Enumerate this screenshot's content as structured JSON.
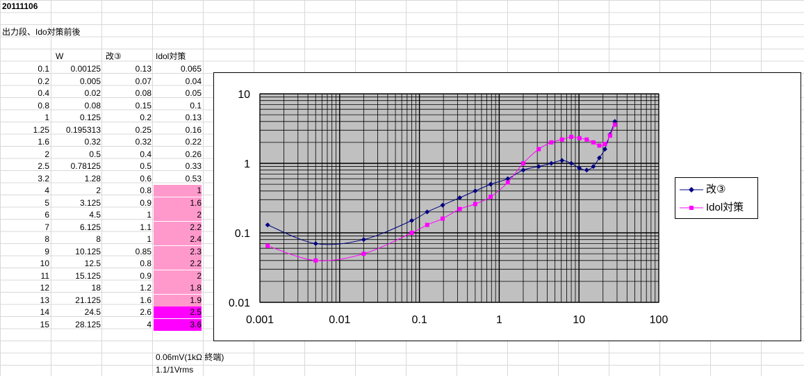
{
  "sheet": {
    "date": "20111106",
    "subtitle": "出力段、Ido対策前後",
    "headers": {
      "w": "W",
      "kai3": "改③",
      "idol": "Idol対策"
    },
    "rows": [
      {
        "v": "0.1",
        "w": "0.00125",
        "kai3": "0.13",
        "idol": "0.065",
        "hl": ""
      },
      {
        "v": "0.2",
        "w": "0.005",
        "kai3": "0.07",
        "idol": "0.04",
        "hl": ""
      },
      {
        "v": "0.4",
        "w": "0.02",
        "kai3": "0.08",
        "idol": "0.05",
        "hl": ""
      },
      {
        "v": "0.8",
        "w": "0.08",
        "kai3": "0.15",
        "idol": "0.1",
        "hl": ""
      },
      {
        "v": "1",
        "w": "0.125",
        "kai3": "0.2",
        "idol": "0.13",
        "hl": ""
      },
      {
        "v": "1.25",
        "w": "0.195313",
        "kai3": "0.25",
        "idol": "0.16",
        "hl": ""
      },
      {
        "v": "1.6",
        "w": "0.32",
        "kai3": "0.32",
        "idol": "0.22",
        "hl": ""
      },
      {
        "v": "2",
        "w": "0.5",
        "kai3": "0.4",
        "idol": "0.26",
        "hl": ""
      },
      {
        "v": "2.5",
        "w": "0.78125",
        "kai3": "0.5",
        "idol": "0.33",
        "hl": ""
      },
      {
        "v": "3.2",
        "w": "1.28",
        "kai3": "0.6",
        "idol": "0.53",
        "hl": ""
      },
      {
        "v": "4",
        "w": "2",
        "kai3": "0.8",
        "idol": "1",
        "hl": "pink"
      },
      {
        "v": "5",
        "w": "3.125",
        "kai3": "0.9",
        "idol": "1.6",
        "hl": "pink"
      },
      {
        "v": "6",
        "w": "4.5",
        "kai3": "1",
        "idol": "2",
        "hl": "pink"
      },
      {
        "v": "7",
        "w": "6.125",
        "kai3": "1.1",
        "idol": "2.2",
        "hl": "pink"
      },
      {
        "v": "8",
        "w": "8",
        "kai3": "1",
        "idol": "2.4",
        "hl": "pink"
      },
      {
        "v": "9",
        "w": "10.125",
        "kai3": "0.85",
        "idol": "2.3",
        "hl": "pink"
      },
      {
        "v": "10",
        "w": "12.5",
        "kai3": "0.8",
        "idol": "2.2",
        "hl": "pink"
      },
      {
        "v": "11",
        "w": "15.125",
        "kai3": "0.9",
        "idol": "2",
        "hl": "pink"
      },
      {
        "v": "12",
        "w": "18",
        "kai3": "1.2",
        "idol": "1.8",
        "hl": "pink"
      },
      {
        "v": "13",
        "w": "21.125",
        "kai3": "1.6",
        "idol": "1.9",
        "hl": "pink"
      },
      {
        "v": "14",
        "w": "24.5",
        "kai3": "2.6",
        "idol": "2.5",
        "hl": "magenta"
      },
      {
        "v": "15",
        "w": "28.125",
        "kai3": "4",
        "idol": "3.6",
        "hl": "magenta"
      }
    ],
    "note1": "0.06mV(1kΩ 終端)",
    "note2": "1.1/1Vrms",
    "colors": {
      "pink": "#ff99cc",
      "magenta": "#ff00ff"
    }
  },
  "chart_data": {
    "type": "scatter",
    "xscale": "log",
    "yscale": "log",
    "xlim": [
      0.001,
      100
    ],
    "ylim": [
      0.01,
      10
    ],
    "x_tick_labels": [
      "0.001",
      "0.01",
      "0.1",
      "1",
      "10",
      "100"
    ],
    "y_tick_labels": [
      "10",
      "1",
      "0.1",
      "0.01"
    ],
    "grid": true,
    "legend": "right",
    "x": [
      0.00125,
      0.005,
      0.02,
      0.08,
      0.125,
      0.195313,
      0.32,
      0.5,
      0.78125,
      1.28,
      2,
      3.125,
      4.5,
      6.125,
      8,
      10.125,
      12.5,
      15.125,
      18,
      21.125,
      24.5,
      28.125
    ],
    "series": [
      {
        "name": "改③",
        "color": "#000080",
        "marker": "diamond",
        "values": [
          0.13,
          0.07,
          0.08,
          0.15,
          0.2,
          0.25,
          0.32,
          0.4,
          0.5,
          0.6,
          0.8,
          0.9,
          1,
          1.1,
          1,
          0.85,
          0.8,
          0.9,
          1.2,
          1.6,
          2.6,
          4
        ]
      },
      {
        "name": "Idol対策",
        "color": "#ff00ff",
        "marker": "square",
        "values": [
          0.065,
          0.04,
          0.05,
          0.1,
          0.13,
          0.16,
          0.22,
          0.26,
          0.33,
          0.53,
          1,
          1.6,
          2,
          2.2,
          2.4,
          2.3,
          2.2,
          2,
          1.8,
          1.9,
          2.5,
          3.6
        ]
      }
    ]
  }
}
